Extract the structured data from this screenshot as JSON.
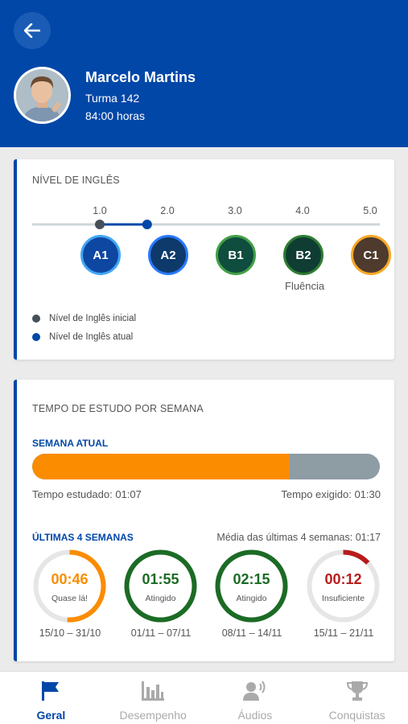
{
  "header": {
    "name": "Marcelo Martins",
    "class": "Turma 142",
    "hours": "84:00 horas"
  },
  "english_level": {
    "title": "NÍVEL DE INGLÊS",
    "scale": [
      "1.0",
      "2.0",
      "3.0",
      "4.0",
      "5.0"
    ],
    "initial_level": 1.0,
    "current_level": 1.7,
    "levels": [
      {
        "label": "A1",
        "color": "#0d47a1",
        "border": "#42a5f5"
      },
      {
        "label": "A2",
        "color": "#0d3a6b",
        "border": "#2979ff"
      },
      {
        "label": "B1",
        "color": "#0f4d3e",
        "border": "#43a047"
      },
      {
        "label": "B2",
        "color": "#0f3d33",
        "border": "#2e7d32"
      },
      {
        "label": "C1",
        "color": "#4e3b2e",
        "border": "#f9a825"
      }
    ],
    "fluency_label": "Fluência",
    "legend_initial": "Nível de Inglês inicial",
    "legend_current": "Nível de Inglês atual",
    "colors": {
      "initial": "#45505a",
      "current": "#0047a8"
    }
  },
  "study_time": {
    "title": "TEMPO DE ESTUDO POR SEMANA",
    "current_week_label": "SEMANA ATUAL",
    "progress_fraction": 0.74,
    "studied": "Tempo estudado: 01:07",
    "required": "Tempo exigido: 01:30",
    "last_weeks_label": "ÚLTIMAS 4 SEMANAS",
    "average": "Média das últimas 4 semanas: 01:17",
    "weeks": [
      {
        "time": "00:46",
        "status": "Quase lá!",
        "range": "15/10 – 31/10",
        "color": "#fb8c00",
        "fraction": 0.51
      },
      {
        "time": "01:55",
        "status": "Atingido",
        "range": "01/11 – 07/11",
        "color": "#1b6b25",
        "fraction": 1.0
      },
      {
        "time": "02:15",
        "status": "Atingido",
        "range": "08/11 – 14/11",
        "color": "#1b6b25",
        "fraction": 1.0
      },
      {
        "time": "00:12",
        "status": "Insuficiente",
        "range": "15/11 – 21/11",
        "color": "#b71c1c",
        "fraction": 0.13
      }
    ]
  },
  "nav": [
    {
      "label": "Geral",
      "icon": "flag-icon",
      "active": true
    },
    {
      "label": "Desempenho",
      "icon": "bar-chart-icon",
      "active": false
    },
    {
      "label": "Áudios",
      "icon": "speaking-person-icon",
      "active": false
    },
    {
      "label": "Conquistas",
      "icon": "trophy-icon",
      "active": false
    }
  ]
}
